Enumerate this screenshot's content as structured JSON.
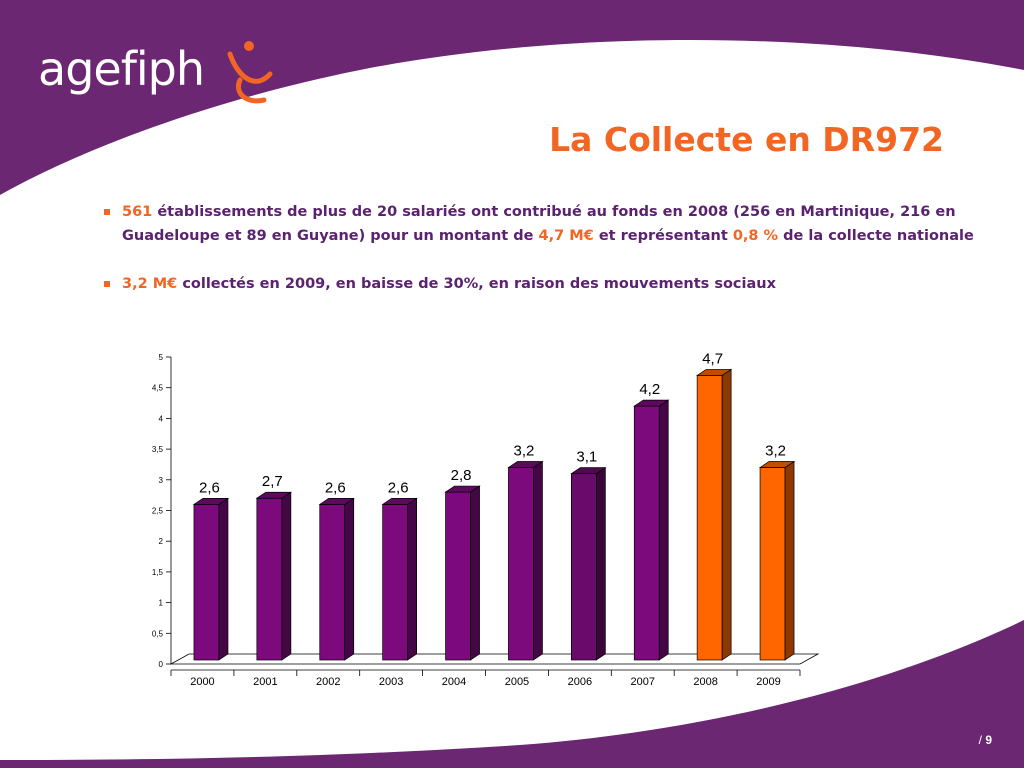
{
  "slide": {
    "logo_text": "agefiph",
    "title": "La Collecte en DR972",
    "bullets": [
      {
        "hl1": "561",
        "t1": " établissements de plus de 20 salariés ont contribué au fonds en 2008 (256 en Martinique, 216 en Guadeloupe et 89 en Guyane) pour un montant de ",
        "hl2": "4,7 M€",
        "t2": " et représentant ",
        "hl3": "0,8 %",
        "t3": " de la collecte nationale"
      },
      {
        "hl1": "3,2 M€",
        "t1": " collectés en 2009, en baisse de 30%, en raison des mouvements sociaux"
      }
    ],
    "page_prefix": "/ ",
    "page_number": "9"
  },
  "colors": {
    "purple": "#6b2771",
    "orange": "#f26522",
    "bar_purple": "#7d0a7d",
    "bar_orange": "#ff6600"
  },
  "chart_data": {
    "type": "bar",
    "categories": [
      "2000",
      "2001",
      "2002",
      "2003",
      "2004",
      "2005",
      "2006",
      "2007",
      "2008",
      "2009"
    ],
    "values": [
      2.6,
      2.7,
      2.6,
      2.6,
      2.8,
      3.2,
      3.1,
      4.2,
      4.7,
      3.2
    ],
    "value_labels": [
      "2,6",
      "2,7",
      "2,6",
      "2,6",
      "2,8",
      "3,2",
      "3,1",
      "4,2",
      "4,7",
      "3,2"
    ],
    "bar_colors": [
      "#7d0a7d",
      "#7d0a7d",
      "#7d0a7d",
      "#7d0a7d",
      "#7d0a7d",
      "#7d0a7d",
      "#6a0a6a",
      "#7d0a7d",
      "#ff6600",
      "#ff6600"
    ],
    "ylim": [
      0,
      5
    ],
    "yticks": [
      "0",
      "0,5",
      "1",
      "1,5",
      "2",
      "2,5",
      "3",
      "3,5",
      "4",
      "4,5",
      "5"
    ],
    "grid": false,
    "3d": true
  }
}
